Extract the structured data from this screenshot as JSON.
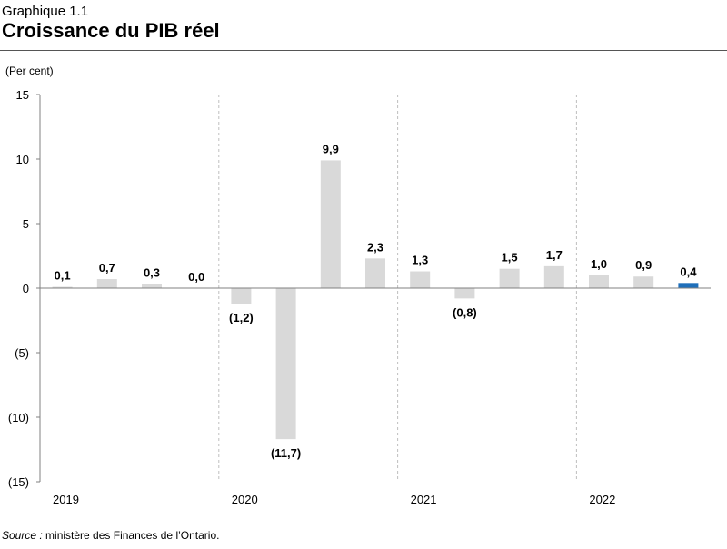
{
  "header": {
    "kicker": "Graphique 1.1",
    "title": "Croissance du PIB réel"
  },
  "source": {
    "label": "Source :",
    "text": " ministère des Finances de l’Ontario."
  },
  "chart_data": {
    "type": "bar",
    "title": "Croissance du PIB réel",
    "ylabel": "(Per cent)",
    "xlabel": "",
    "ylim": [
      -15,
      15
    ],
    "yticks": [
      15,
      10,
      5,
      0,
      -5,
      -10,
      -15
    ],
    "ytick_labels": [
      "15",
      "10",
      "5",
      "0",
      "(5)",
      "(10)",
      "(15)"
    ],
    "year_groups": [
      "2019",
      "2020",
      "2021",
      "2022"
    ],
    "quarters_per_year": 4,
    "values": [
      0.1,
      0.7,
      0.3,
      0.0,
      -1.2,
      -11.7,
      9.9,
      2.3,
      1.3,
      -0.8,
      1.5,
      1.7,
      1.0,
      0.9,
      0.4
    ],
    "data_labels": [
      "0,1",
      "0,7",
      "0,3",
      "0,0",
      "(1,2)",
      "(11,7)",
      "9,9",
      "2,3",
      "1,3",
      "(0,8)",
      "1,5",
      "1,7",
      "1,0",
      "0,9",
      "0,4"
    ],
    "colors": {
      "default": "#d9d9d9",
      "highlight": "#1f6fba",
      "axis": "#808080",
      "separator": "#bfbfbf"
    },
    "highlight_index": 14
  }
}
